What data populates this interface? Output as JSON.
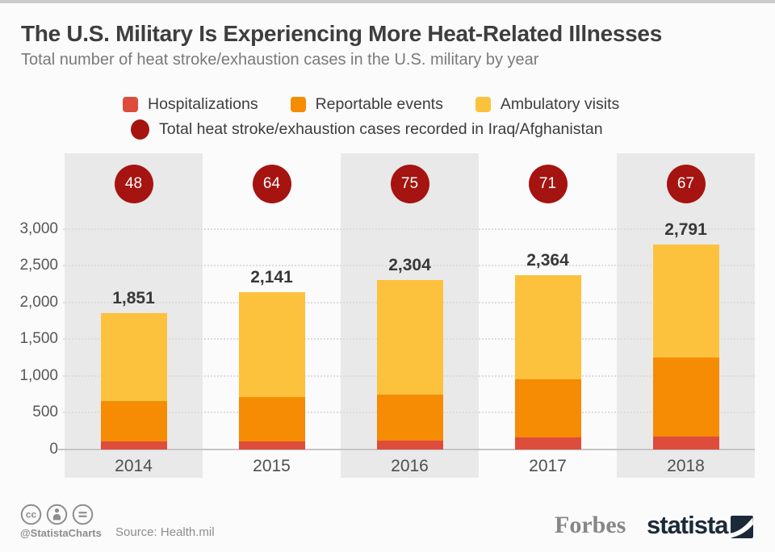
{
  "header": {
    "title": "The U.S. Military Is Experiencing More Heat-Related Illnesses",
    "subtitle": "Total number of heat stroke/exhaustion cases in the U.S. military by year"
  },
  "legend": {
    "items": [
      {
        "label": "Hospitalizations",
        "color": "#de4c3c"
      },
      {
        "label": "Reportable events",
        "color": "#f68b04"
      },
      {
        "label": "Ambulatory visits",
        "color": "#fcc23d"
      }
    ],
    "total_item": {
      "label": "Total heat stroke/exhaustion cases recorded in Iraq/Afghanistan",
      "color": "#a51410"
    }
  },
  "chart_data": {
    "type": "bar",
    "stacked": true,
    "categories": [
      "2014",
      "2015",
      "2016",
      "2017",
      "2018"
    ],
    "series": [
      {
        "name": "Hospitalizations",
        "color": "#de4c3c",
        "values": [
          100,
          110,
          121,
          156,
          175
        ]
      },
      {
        "name": "Reportable events",
        "color": "#f68b04",
        "values": [
          551,
          597,
          624,
          790,
          1071
        ]
      },
      {
        "name": "Ambulatory visits",
        "color": "#fcc23d",
        "values": [
          1200,
          1434,
          1559,
          1418,
          1545
        ]
      }
    ],
    "totals": [
      "1,851",
      "2,141",
      "2,304",
      "2,364",
      "2,791"
    ],
    "iraq_afghanistan_totals": [
      48,
      64,
      75,
      71,
      67
    ],
    "y_ticks": [
      "3,000",
      "2,500",
      "2,000",
      "1,500",
      "1,000",
      "500",
      "0"
    ],
    "ylim": [
      0,
      3000
    ],
    "grid": "horizontal-dotted",
    "column_band_color": "#e9e9e9"
  },
  "footer": {
    "license_icons": [
      "cc-icon",
      "attribution-icon",
      "equals-icon"
    ],
    "handle": "@StatistaCharts",
    "source": "Source: Health.mil",
    "forbes": "Forbes",
    "statista": "statista"
  }
}
